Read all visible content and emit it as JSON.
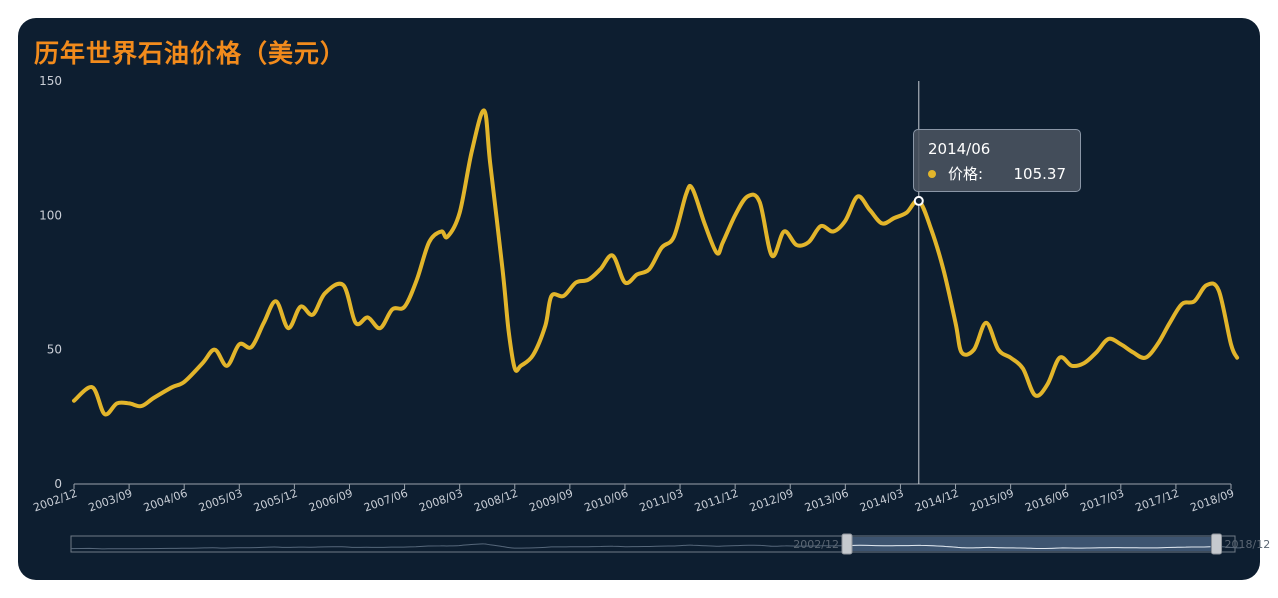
{
  "title": "历年世界石油价格（美元）",
  "colors": {
    "background": "#0d1e30",
    "title": "#f28b1c",
    "line": "#e2b52b",
    "axis_text": "#c9ced6"
  },
  "tooltip": {
    "date": "2014/06",
    "series_label": "价格:",
    "value": "105.37"
  },
  "datazoom": {
    "start_label": "2002/12",
    "end_label": "2018/12",
    "window_start": "2013/06",
    "window_end": "2018/06"
  },
  "chart_data": {
    "type": "line",
    "ylim": [
      0,
      150
    ],
    "y_ticks": [
      0,
      50,
      100,
      150
    ],
    "x_tick_labels": [
      "2002/12",
      "2003/09",
      "2004/06",
      "2005/03",
      "2005/12",
      "2006/09",
      "2007/06",
      "2008/03",
      "2008/12",
      "2009/09",
      "2010/06",
      "2011/03",
      "2011/12",
      "2012/09",
      "2013/06",
      "2014/03",
      "2014/12",
      "2015/09",
      "2016/06",
      "2017/03",
      "2017/12",
      "2018/09"
    ],
    "x_range": [
      "2002/12",
      "2018/09"
    ],
    "highlight": {
      "x": "2014/06",
      "y": 105.37
    },
    "points": [
      [
        "2002/12",
        31
      ],
      [
        "2003/03",
        36
      ],
      [
        "2003/05",
        26
      ],
      [
        "2003/07",
        30
      ],
      [
        "2003/09",
        30
      ],
      [
        "2003/11",
        29
      ],
      [
        "2004/01",
        32
      ],
      [
        "2004/04",
        36
      ],
      [
        "2004/06",
        38
      ],
      [
        "2004/09",
        45
      ],
      [
        "2004/11",
        50
      ],
      [
        "2005/01",
        44
      ],
      [
        "2005/03",
        52
      ],
      [
        "2005/05",
        51
      ],
      [
        "2005/07",
        60
      ],
      [
        "2005/09",
        68
      ],
      [
        "2005/11",
        58
      ],
      [
        "2006/01",
        66
      ],
      [
        "2006/03",
        63
      ],
      [
        "2006/05",
        71
      ],
      [
        "2006/08",
        74
      ],
      [
        "2006/10",
        60
      ],
      [
        "2006/12",
        62
      ],
      [
        "2007/02",
        58
      ],
      [
        "2007/04",
        65
      ],
      [
        "2007/06",
        66
      ],
      [
        "2007/08",
        76
      ],
      [
        "2007/10",
        90
      ],
      [
        "2007/12",
        94
      ],
      [
        "2008/01",
        92
      ],
      [
        "2008/03",
        101
      ],
      [
        "2008/05",
        124
      ],
      [
        "2008/07",
        139
      ],
      [
        "2008/08",
        119
      ],
      [
        "2008/10",
        80
      ],
      [
        "2008/11",
        57
      ],
      [
        "2008/12",
        43
      ],
      [
        "2009/01",
        44
      ],
      [
        "2009/03",
        48
      ],
      [
        "2009/05",
        59
      ],
      [
        "2009/06",
        70
      ],
      [
        "2009/08",
        70
      ],
      [
        "2009/10",
        75
      ],
      [
        "2009/12",
        76
      ],
      [
        "2010/02",
        80
      ],
      [
        "2010/04",
        85
      ],
      [
        "2010/06",
        75
      ],
      [
        "2010/08",
        78
      ],
      [
        "2010/10",
        80
      ],
      [
        "2010/12",
        88
      ],
      [
        "2011/02",
        92
      ],
      [
        "2011/04",
        108
      ],
      [
        "2011/05",
        110
      ],
      [
        "2011/07",
        97
      ],
      [
        "2011/09",
        86
      ],
      [
        "2011/10",
        90
      ],
      [
        "2011/12",
        100
      ],
      [
        "2012/02",
        107
      ],
      [
        "2012/04",
        105
      ],
      [
        "2012/06",
        85
      ],
      [
        "2012/08",
        94
      ],
      [
        "2012/10",
        89
      ],
      [
        "2012/12",
        90
      ],
      [
        "2013/02",
        96
      ],
      [
        "2013/04",
        94
      ],
      [
        "2013/06",
        98
      ],
      [
        "2013/08",
        107
      ],
      [
        "2013/10",
        102
      ],
      [
        "2013/12",
        97
      ],
      [
        "2014/02",
        99
      ],
      [
        "2014/04",
        101
      ],
      [
        "2014/06",
        105.37
      ],
      [
        "2014/08",
        95
      ],
      [
        "2014/10",
        80
      ],
      [
        "2014/12",
        60
      ],
      [
        "2015/01",
        49
      ],
      [
        "2015/03",
        50
      ],
      [
        "2015/05",
        60
      ],
      [
        "2015/07",
        50
      ],
      [
        "2015/09",
        47
      ],
      [
        "2015/11",
        43
      ],
      [
        "2016/01",
        33
      ],
      [
        "2016/03",
        37
      ],
      [
        "2016/05",
        47
      ],
      [
        "2016/07",
        44
      ],
      [
        "2016/09",
        45
      ],
      [
        "2016/11",
        49
      ],
      [
        "2017/01",
        54
      ],
      [
        "2017/03",
        52
      ],
      [
        "2017/05",
        49
      ],
      [
        "2017/07",
        47
      ],
      [
        "2017/09",
        52
      ],
      [
        "2017/11",
        60
      ],
      [
        "2018/01",
        67
      ],
      [
        "2018/03",
        68
      ],
      [
        "2018/05",
        74
      ],
      [
        "2018/07",
        72
      ],
      [
        "2018/09",
        52
      ],
      [
        "2018/10",
        47
      ]
    ]
  }
}
